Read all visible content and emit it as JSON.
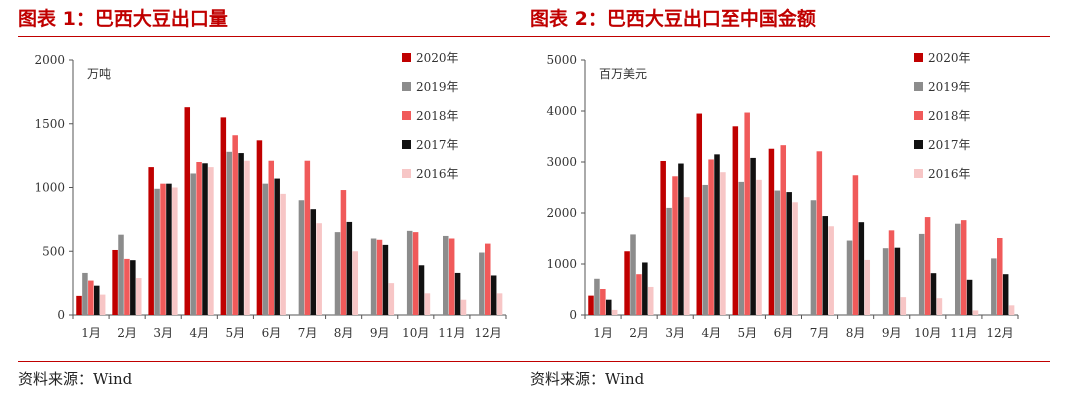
{
  "panels": [
    {
      "title": "图表 1：巴西大豆出口量",
      "source": "资料来源：Wind",
      "chart_data": {
        "type": "bar",
        "unit": "万吨",
        "ylim": [
          0,
          2000
        ],
        "yticks": [
          0,
          500,
          1000,
          1500,
          2000
        ],
        "legend_position": "top-right",
        "categories": [
          "1月",
          "2月",
          "3月",
          "4月",
          "5月",
          "6月",
          "7月",
          "8月",
          "9月",
          "10月",
          "11月",
          "12月"
        ],
        "series": [
          {
            "name": "2020年",
            "color": "#c00000",
            "values": [
              150,
              510,
              1160,
              1630,
              1550,
              1370,
              null,
              null,
              null,
              null,
              null,
              null
            ]
          },
          {
            "name": "2019年",
            "color": "#8c8c8c",
            "values": [
              330,
              630,
              990,
              1110,
              1280,
              1030,
              900,
              650,
              600,
              660,
              620,
              490
            ]
          },
          {
            "name": "2018年",
            "color": "#f05a5a",
            "values": [
              270,
              440,
              1030,
              1200,
              1410,
              1210,
              1210,
              980,
              590,
              650,
              600,
              560
            ]
          },
          {
            "name": "2017年",
            "color": "#111111",
            "values": [
              230,
              430,
              1030,
              1190,
              1270,
              1070,
              830,
              730,
              550,
              390,
              330,
              310
            ]
          },
          {
            "name": "2016年",
            "color": "#f7c6c6",
            "values": [
              160,
              290,
              1000,
              1160,
              1210,
              950,
              720,
              500,
              250,
              170,
              120,
              170
            ]
          }
        ]
      }
    },
    {
      "title": "图表 2：巴西大豆出口至中国金额",
      "source": "资料来源：Wind",
      "chart_data": {
        "type": "bar",
        "unit": "百万美元",
        "ylim": [
          0,
          5000
        ],
        "yticks": [
          0,
          1000,
          2000,
          3000,
          4000,
          5000
        ],
        "legend_position": "top-right",
        "categories": [
          "1月",
          "2月",
          "3月",
          "4月",
          "5月",
          "6月",
          "7月",
          "8月",
          "9月",
          "10月",
          "11月",
          "12月"
        ],
        "series": [
          {
            "name": "2020年",
            "color": "#c00000",
            "values": [
              380,
              1250,
              3020,
              3950,
              3700,
              3260,
              null,
              null,
              null,
              null,
              null,
              null
            ]
          },
          {
            "name": "2019年",
            "color": "#8c8c8c",
            "values": [
              710,
              1580,
              2100,
              2550,
              2610,
              2440,
              2250,
              1460,
              1310,
              1590,
              1790,
              1110
            ]
          },
          {
            "name": "2018年",
            "color": "#f05a5a",
            "values": [
              510,
              800,
              2720,
              3050,
              3970,
              3330,
              3210,
              2740,
              1660,
              1920,
              1860,
              1510
            ]
          },
          {
            "name": "2017年",
            "color": "#111111",
            "values": [
              300,
              1030,
              2970,
              3150,
              3080,
              2410,
              1940,
              1820,
              1320,
              820,
              690,
              800
            ]
          },
          {
            "name": "2016年",
            "color": "#f7c6c6",
            "values": [
              100,
              550,
              2310,
              2800,
              2650,
              2210,
              1740,
              1080,
              350,
              330,
              90,
              190
            ]
          }
        ]
      }
    }
  ]
}
